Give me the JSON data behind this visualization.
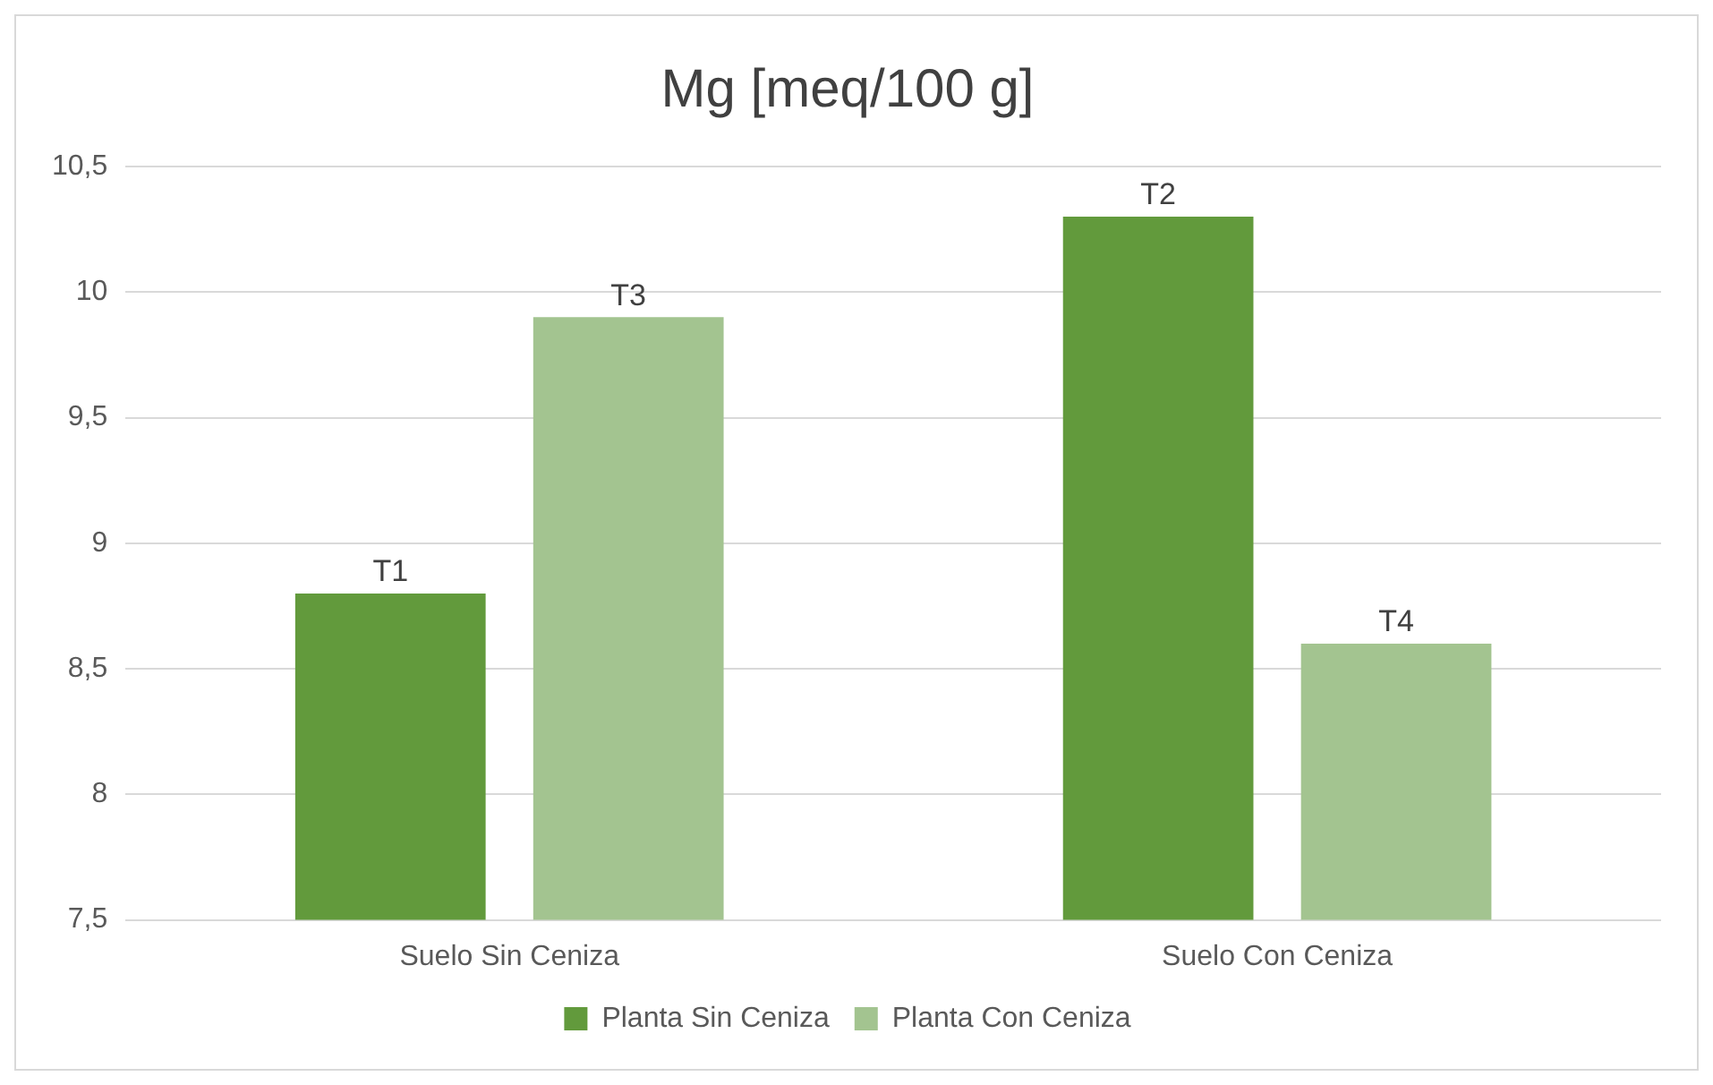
{
  "chart_data": {
    "type": "bar",
    "title": "Mg [meq/100 g]",
    "categories": [
      "Suelo Sin Ceniza",
      "Suelo Con Ceniza"
    ],
    "series": [
      {
        "name": "Planta Sin Ceniza",
        "color": "#629a3c",
        "values": [
          8.8,
          10.3
        ],
        "value_labels": [
          "T1",
          "T2"
        ]
      },
      {
        "name": "Planta Con Ceniza",
        "color": "#a3c490",
        "values": [
          9.9,
          8.6
        ],
        "value_labels": [
          "T3",
          "T4"
        ]
      }
    ],
    "ylim": [
      7.5,
      10.5
    ],
    "yticks": [
      {
        "value": 7.5,
        "label": "7,5"
      },
      {
        "value": 8,
        "label": "8"
      },
      {
        "value": 8.5,
        "label": "8,5"
      },
      {
        "value": 9,
        "label": "9"
      },
      {
        "value": 9.5,
        "label": "9,5"
      },
      {
        "value": 10,
        "label": "10"
      },
      {
        "value": 10.5,
        "label": "10,5"
      }
    ],
    "grid": "y",
    "legend": "bottom"
  }
}
